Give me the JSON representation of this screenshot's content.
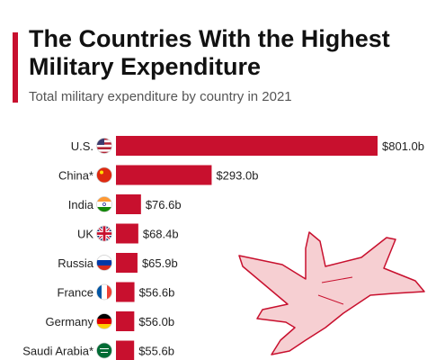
{
  "header": {
    "title": "The Countries With the Highest Military Expenditure",
    "subtitle": "Total military expenditure by country in 2021"
  },
  "colors": {
    "accent": "#c8102e",
    "bar": "#c8102e",
    "jet_fill": "#f6cfd2",
    "jet_stroke": "#c8102e"
  },
  "flags": [
    "us-flag-icon",
    "china-flag-icon",
    "india-flag-icon",
    "uk-flag-icon",
    "russia-flag-icon",
    "france-flag-icon",
    "germany-flag-icon",
    "saudi-arabia-flag-icon"
  ],
  "chart_data": {
    "type": "bar",
    "orientation": "horizontal",
    "title": "The Countries With the Highest Military Expenditure",
    "subtitle": "Total military expenditure by country in 2021",
    "categories": [
      "U.S.",
      "China*",
      "India",
      "UK",
      "Russia",
      "France",
      "Germany",
      "Saudi Arabia*"
    ],
    "values": [
      801.0,
      293.0,
      76.6,
      68.4,
      65.9,
      56.6,
      56.0,
      55.6
    ],
    "value_labels": [
      "$801.0b",
      "$293.0b",
      "$76.6b",
      "$68.4b",
      "$65.9b",
      "$56.6b",
      "$56.0b",
      "$55.6b"
    ],
    "unit": "billion USD",
    "grid": false,
    "legend": "none"
  }
}
